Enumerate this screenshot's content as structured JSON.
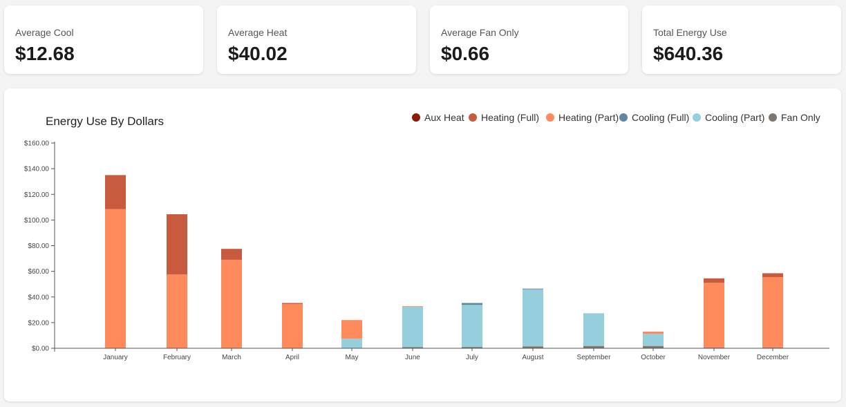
{
  "stats": [
    {
      "label": "Average Cool",
      "value": "$12.68"
    },
    {
      "label": "Average Heat",
      "value": "$40.02"
    },
    {
      "label": "Average Fan Only",
      "value": "$0.66"
    },
    {
      "label": "Total Energy Use",
      "value": "$640.36"
    }
  ],
  "chart_data": {
    "type": "bar",
    "stacked": true,
    "title": "Energy Use By Dollars",
    "categories": [
      "January",
      "February",
      "March",
      "April",
      "May",
      "June",
      "July",
      "August",
      "September",
      "October",
      "November",
      "December"
    ],
    "ylim": [
      0,
      160
    ],
    "yticks": [
      "$0.00",
      "$20.00",
      "$40.00",
      "$60.00",
      "$80.00",
      "$100.00",
      "$120.00",
      "$140.00",
      "$160.00"
    ],
    "legend_position": "top-right",
    "series": [
      {
        "name": "Fan Only",
        "color": "#7f7670",
        "values": [
          0,
          0,
          0,
          0,
          0,
          0.8,
          1.0,
          1.5,
          1.8,
          1.8,
          0.5,
          0.5
        ]
      },
      {
        "name": "Cooling (Part)",
        "color": "#96cfdb",
        "values": [
          0,
          0,
          0,
          0,
          7.5,
          31.5,
          32.8,
          44.5,
          25.5,
          9.5,
          0,
          0
        ]
      },
      {
        "name": "Cooling (Full)",
        "color": "#5f87a2",
        "values": [
          0,
          0,
          0,
          0,
          0,
          0,
          1.5,
          0.5,
          0,
          0,
          0,
          0
        ]
      },
      {
        "name": "Heating (Part)",
        "color": "#ff8a5c",
        "values": [
          108.5,
          57.5,
          69,
          34.5,
          14.5,
          0.5,
          0,
          0,
          0,
          1.7,
          50.5,
          55
        ]
      },
      {
        "name": "Heating (Full)",
        "color": "#c85a3e",
        "values": [
          26.5,
          47,
          8.5,
          0.8,
          0,
          0,
          0,
          0,
          0,
          0,
          3.5,
          3.0
        ]
      },
      {
        "name": "Aux Heat",
        "color": "#8b1a0a",
        "values": [
          0,
          0,
          0,
          0,
          0,
          0,
          0,
          0,
          0,
          0,
          0,
          0
        ]
      }
    ],
    "legend_order": [
      "Aux Heat",
      "Heating (Full)",
      "Heating (Part)",
      "Cooling (Full)",
      "Cooling (Part)",
      "Fan Only"
    ]
  }
}
